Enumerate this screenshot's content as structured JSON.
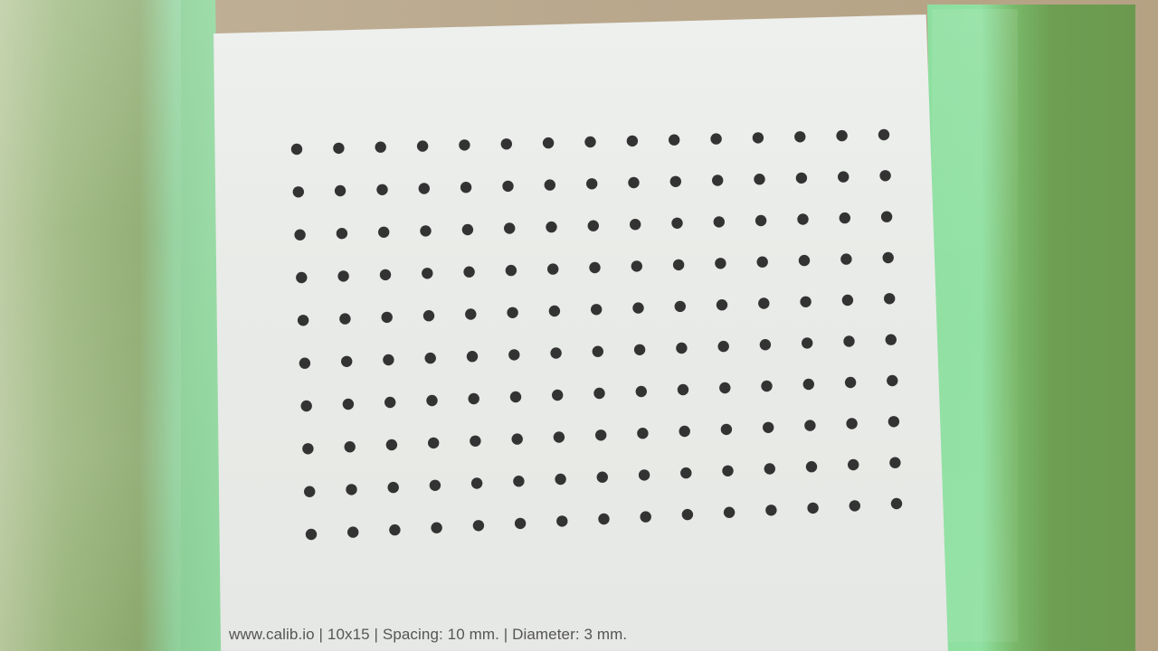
{
  "caption": "www.calib.io | 10x15 | Spacing: 10 mm. | Diameter: 3 mm.",
  "pattern": {
    "rows": 10,
    "cols": 15
  },
  "colors": {
    "dot": "#333333",
    "sheet": "#eceeeb",
    "tape_green": "#8edfa0",
    "cardboard": "#bba98d"
  }
}
